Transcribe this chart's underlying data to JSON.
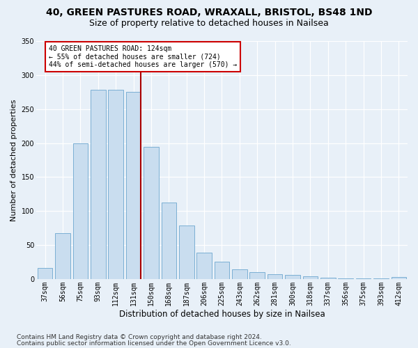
{
  "title1": "40, GREEN PASTURES ROAD, WRAXALL, BRISTOL, BS48 1ND",
  "title2": "Size of property relative to detached houses in Nailsea",
  "xlabel": "Distribution of detached houses by size in Nailsea",
  "ylabel": "Number of detached properties",
  "categories": [
    "37sqm",
    "56sqm",
    "75sqm",
    "93sqm",
    "112sqm",
    "131sqm",
    "150sqm",
    "168sqm",
    "187sqm",
    "206sqm",
    "225sqm",
    "243sqm",
    "262sqm",
    "281sqm",
    "300sqm",
    "318sqm",
    "337sqm",
    "356sqm",
    "375sqm",
    "393sqm",
    "412sqm"
  ],
  "values": [
    16,
    67,
    200,
    278,
    278,
    275,
    194,
    113,
    79,
    39,
    25,
    14,
    10,
    7,
    6,
    4,
    2,
    1,
    1,
    1,
    3
  ],
  "bar_color": "#c9ddef",
  "bar_edge_color": "#7bafd4",
  "vline_color": "#aa0000",
  "vline_x": 5.425,
  "annotation_text": "40 GREEN PASTURES ROAD: 124sqm\n← 55% of detached houses are smaller (724)\n44% of semi-detached houses are larger (570) →",
  "annotation_box_facecolor": "#ffffff",
  "annotation_box_edgecolor": "#cc0000",
  "ylim_max": 350,
  "yticks": [
    0,
    50,
    100,
    150,
    200,
    250,
    300,
    350
  ],
  "background_color": "#e8f0f8",
  "grid_color": "#ffffff",
  "footer1": "Contains HM Land Registry data © Crown copyright and database right 2024.",
  "footer2": "Contains public sector information licensed under the Open Government Licence v3.0.",
  "title1_fontsize": 10,
  "title2_fontsize": 9,
  "xlabel_fontsize": 8.5,
  "ylabel_fontsize": 8,
  "tick_fontsize": 7,
  "annot_fontsize": 7,
  "footer_fontsize": 6.5
}
